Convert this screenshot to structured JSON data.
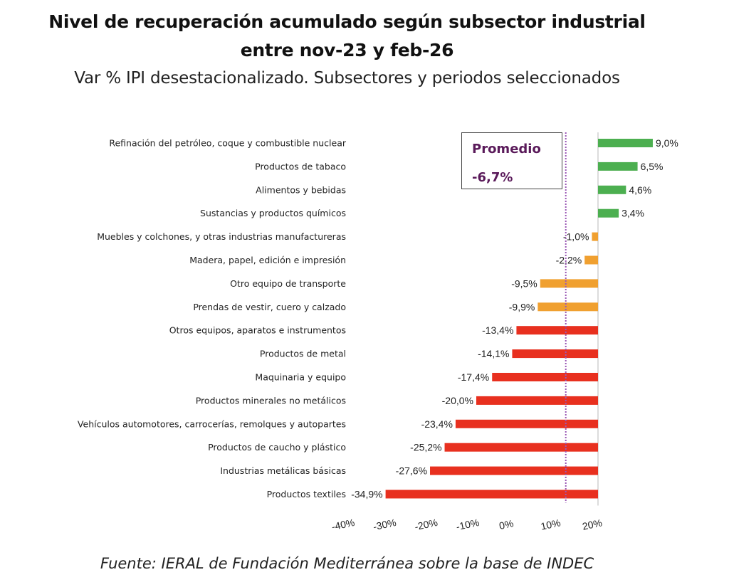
{
  "header": {
    "title_line1": "Nivel de recuperación acumulado según subsector industrial",
    "title_line2": "entre nov-23 y feb-26",
    "subtitle": "Var % IPI desestacionalizado. Subsectores y periodos seleccionados"
  },
  "promedio": {
    "label": "Promedio",
    "value_text": "-6,7%",
    "value": -6.7,
    "line_color": "#9b59b6"
  },
  "footer": {
    "source": "Fuente: IERAL de Fundación Mediterránea sobre la base de INDEC"
  },
  "colors": {
    "positive": "#4caf50",
    "moderate_negative": "#f0a030",
    "strong_negative": "#e8301f"
  },
  "chart_data": {
    "type": "bar",
    "orientation": "horizontal",
    "title": "Nivel de recuperación acumulado según subsector industrial entre nov-23 y feb-26",
    "subtitle": "Var % IPI desestacionalizado. Subsectores y periodos seleccionados",
    "xlabel": "",
    "ylabel": "",
    "xlim": [
      -40,
      20
    ],
    "x_ticks": [
      -40,
      -30,
      -20,
      -10,
      0,
      10,
      20
    ],
    "x_tick_labels": [
      "-40%",
      "-30%",
      "-20%",
      "-10%",
      "0%",
      "10%",
      "20%"
    ],
    "grid": false,
    "categories": [
      "Refinación del petróleo, coque y combustible nuclear",
      "Productos de tabaco",
      "Alimentos y bebidas",
      "Sustancias y productos químicos",
      "Muebles y colchones, y otras industrias manufactureras",
      "Madera, papel, edición e impresión",
      "Otro equipo de transporte",
      "Prendas de vestir, cuero y calzado",
      "Otros equipos, aparatos e instrumentos",
      "Productos de metal",
      "Maquinaria y equipo",
      "Productos minerales no metálicos",
      "Vehículos automotores, carrocerías, remolques y autopartes",
      "Productos de caucho y plástico",
      "Industrias metálicas básicas",
      "Productos textiles"
    ],
    "values": [
      9.0,
      6.5,
      4.6,
      3.4,
      -1.0,
      -2.2,
      -9.5,
      -9.9,
      -13.4,
      -14.1,
      -17.4,
      -20.0,
      -23.4,
      -25.2,
      -27.6,
      -34.9
    ],
    "value_labels": [
      "9,0%",
      "6,5%",
      "4,6%",
      "3,4%",
      "-1,0%",
      "-2,2%",
      "-9,5%",
      "-9,9%",
      "-13,4%",
      "-14,1%",
      "-17,4%",
      "-20,0%",
      "-23,4%",
      "-25,2%",
      "-27,6%",
      "-34,9%"
    ],
    "bar_color_groups": [
      "positive",
      "positive",
      "positive",
      "positive",
      "moderate_negative",
      "moderate_negative",
      "moderate_negative",
      "moderate_negative",
      "strong_negative",
      "strong_negative",
      "strong_negative",
      "strong_negative",
      "strong_negative",
      "strong_negative",
      "strong_negative",
      "strong_negative"
    ],
    "reference_line": {
      "label": "Promedio",
      "value": -6.7,
      "style": "dotted"
    }
  }
}
